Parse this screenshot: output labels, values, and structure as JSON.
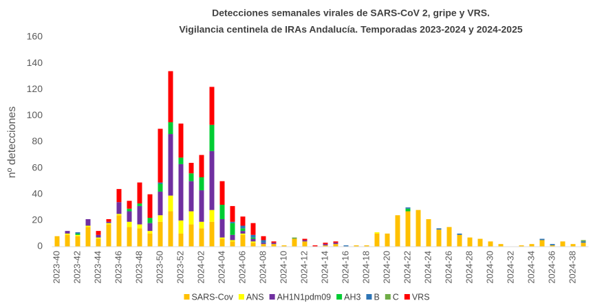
{
  "chart_data": {
    "type": "stacked-bar",
    "title": "Detecciones semanales virales de SARS-CoV 2, gripe y VRS.",
    "subtitle": "Vigilancia centinela de IRAs Andalucía. Temporadas 2023-2024 y 2024-2025",
    "y_label": "nº detecciones",
    "categories": [
      "2023-40",
      null,
      "2023-42",
      null,
      "2023-44",
      null,
      "2023-46",
      null,
      "2023-48",
      null,
      "2023-50",
      null,
      "2023-52",
      null,
      "2024-02",
      null,
      "2024-04",
      null,
      "2024-06",
      null,
      "2024-08",
      null,
      "2024-10",
      null,
      "2024-12",
      null,
      "2024-14",
      null,
      "2024-16",
      null,
      "2024-18",
      null,
      "2024-20",
      null,
      "2024-22",
      null,
      "2024-24",
      null,
      "2024-26",
      null,
      "2024-28",
      null,
      "2024-30",
      null,
      "2024-32",
      null,
      "2024-34",
      null,
      "2024-36",
      null,
      "2024-38",
      null
    ],
    "series": [
      {
        "name": "SARS-Cov",
        "color": "#ffc000",
        "values": [
          8,
          9,
          8,
          15,
          6,
          17,
          24,
          15,
          14,
          10,
          19,
          27,
          10,
          17,
          14,
          19,
          6,
          4,
          9,
          3,
          2,
          2,
          1,
          6,
          4,
          0,
          1,
          2,
          0,
          1,
          1,
          10,
          10,
          24,
          27,
          28,
          21,
          13,
          15,
          9,
          7,
          6,
          4,
          2,
          0,
          1,
          2,
          5,
          1,
          4,
          2,
          3
        ]
      },
      {
        "name": "ANS",
        "color": "#ffff00",
        "values": [
          0,
          1,
          1,
          1,
          1,
          1,
          1,
          4,
          3,
          2,
          5,
          12,
          10,
          10,
          5,
          9,
          1,
          1,
          1,
          1,
          0,
          0,
          0,
          0,
          0,
          0,
          0,
          0,
          0,
          0,
          0,
          1,
          0,
          0,
          0,
          0,
          0,
          0,
          0,
          0,
          0,
          0,
          0,
          0,
          0,
          0,
          0,
          0,
          0,
          0,
          0,
          0
        ]
      },
      {
        "name": "AH1N1pdm09",
        "color": "#7030a0",
        "values": [
          0,
          2,
          0,
          5,
          2,
          1,
          9,
          8,
          14,
          6,
          18,
          47,
          43,
          23,
          24,
          45,
          14,
          4,
          2,
          2,
          1,
          1,
          0,
          0,
          1,
          0,
          1,
          1,
          0,
          0,
          0,
          0,
          0,
          0,
          0,
          0,
          0,
          0,
          0,
          0,
          0,
          0,
          0,
          0,
          0,
          0,
          0,
          0,
          0,
          0,
          0,
          0
        ]
      },
      {
        "name": "AH3",
        "color": "#00cc33",
        "values": [
          0,
          0,
          1,
          0,
          0,
          0,
          0,
          2,
          2,
          4,
          6,
          9,
          5,
          6,
          10,
          20,
          11,
          9,
          2,
          1,
          0,
          0,
          0,
          0,
          0,
          0,
          0,
          0,
          0,
          0,
          0,
          0,
          0,
          0,
          2,
          0,
          0,
          0,
          0,
          0,
          0,
          0,
          0,
          0,
          0,
          0,
          0,
          0,
          0,
          0,
          0,
          0
        ]
      },
      {
        "name": "B",
        "color": "#2e75b6",
        "values": [
          0,
          0,
          1,
          0,
          0,
          0,
          0,
          0,
          0,
          0,
          1,
          0,
          0,
          0,
          0,
          0,
          0,
          1,
          2,
          2,
          2,
          0,
          0,
          0,
          0,
          0,
          0,
          0,
          1,
          0,
          0,
          0,
          0,
          0,
          1,
          0,
          0,
          1,
          0,
          1,
          0,
          0,
          0,
          0,
          0,
          0,
          0,
          1,
          1,
          0,
          0,
          1
        ]
      },
      {
        "name": "C",
        "color": "#70ad47",
        "values": [
          0,
          0,
          0,
          0,
          0,
          0,
          0,
          0,
          0,
          0,
          0,
          0,
          0,
          0,
          0,
          0,
          0,
          0,
          0,
          0,
          0,
          0,
          0,
          1,
          0,
          0,
          0,
          0,
          0,
          0,
          0,
          0,
          0,
          0,
          0,
          0,
          0,
          0,
          0,
          0,
          0,
          0,
          0,
          0,
          0,
          0,
          0,
          0,
          0,
          0,
          0,
          1
        ]
      },
      {
        "name": "VRS",
        "color": "#ff0000",
        "values": [
          0,
          0,
          0,
          0,
          3,
          2,
          10,
          6,
          16,
          18,
          41,
          39,
          26,
          8,
          17,
          29,
          18,
          12,
          7,
          9,
          3,
          1,
          0,
          0,
          1,
          1,
          1,
          1,
          0,
          0,
          0,
          0,
          0,
          0,
          0,
          0,
          0,
          0,
          0,
          0,
          0,
          0,
          0,
          0,
          0,
          0,
          0,
          0,
          0,
          0,
          0,
          0
        ]
      }
    ],
    "ylim": [
      0,
      160
    ],
    "yticks": [
      0,
      20,
      40,
      60,
      80,
      100,
      120,
      140,
      160
    ],
    "grid": false,
    "legend": "bottom"
  }
}
